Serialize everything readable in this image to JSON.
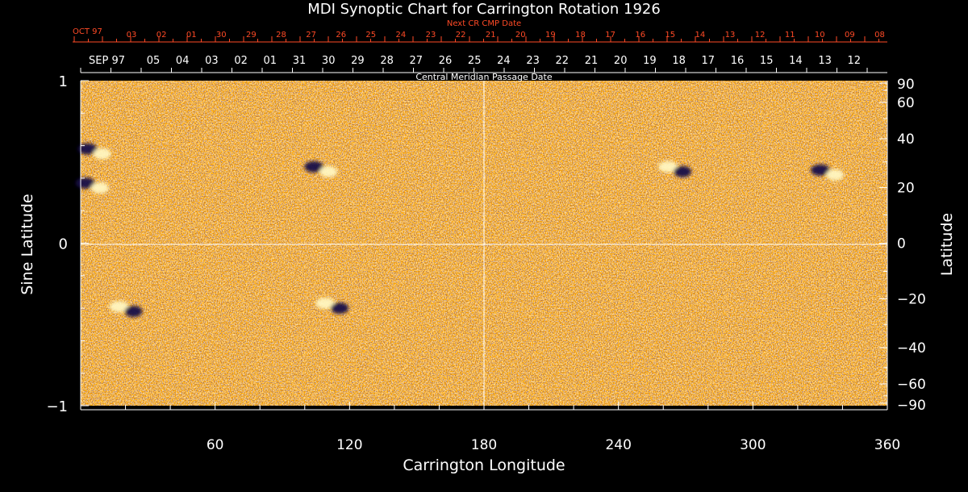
{
  "chart_data": {
    "type": "heatmap",
    "title": "MDI Synoptic Chart for Carrington Rotation 1926",
    "xlabel": "Carrington Longitude",
    "ylabel_left": "Sine Latitude",
    "ylabel_right": "Latitude",
    "xlim": [
      0,
      360
    ],
    "ylim": [
      -1,
      1
    ],
    "x_ticks": [
      "60",
      "120",
      "180",
      "240",
      "300",
      "360"
    ],
    "y_left_ticks": [
      "1",
      "0",
      "−1"
    ],
    "y_right_ticks": [
      "90",
      "60",
      "40",
      "20",
      "0",
      "−20",
      "−40",
      "−60",
      "−90"
    ],
    "top_axis_label": "Central Meridian Passage Date",
    "top_axis_month": "SEP 97",
    "top_axis_dates": [
      "05",
      "04",
      "03",
      "02",
      "01",
      "31",
      "30",
      "29",
      "28",
      "27",
      "26",
      "25",
      "24",
      "23",
      "22",
      "21",
      "20",
      "19",
      "18",
      "17",
      "16",
      "15",
      "14",
      "13",
      "12"
    ],
    "next_axis_label": "Next CR CMP Date",
    "next_axis_month": "OCT 97",
    "next_axis_dates": [
      "03",
      "02",
      "01",
      "30",
      "29",
      "28",
      "27",
      "26",
      "25",
      "24",
      "23",
      "22",
      "21",
      "20",
      "19",
      "18",
      "17",
      "16",
      "15",
      "14",
      "13",
      "12",
      "11",
      "10",
      "09",
      "08"
    ],
    "grid": "lines at 180 longitude and 0 latitude",
    "colors": {
      "background_field": "#ff5a10",
      "positive_flux": "#fff6c0",
      "negative_flux": "#14104a",
      "next_axis_text": "#ff4a26"
    },
    "active_regions": [
      {
        "longitude": 6,
        "sine_latitude": 0.57,
        "polarity_order": "negative-positive"
      },
      {
        "longitude": 5,
        "sine_latitude": 0.36,
        "polarity_order": "negative-positive"
      },
      {
        "longitude": 107,
        "sine_latitude": 0.46,
        "polarity_order": "negative-positive"
      },
      {
        "longitude": 265,
        "sine_latitude": 0.46,
        "polarity_order": "positive-negative"
      },
      {
        "longitude": 333,
        "sine_latitude": 0.44,
        "polarity_order": "negative-positive"
      },
      {
        "longitude": 20,
        "sine_latitude": -0.4,
        "polarity_order": "positive-negative"
      },
      {
        "longitude": 112,
        "sine_latitude": -0.38,
        "polarity_order": "positive-negative"
      }
    ]
  }
}
